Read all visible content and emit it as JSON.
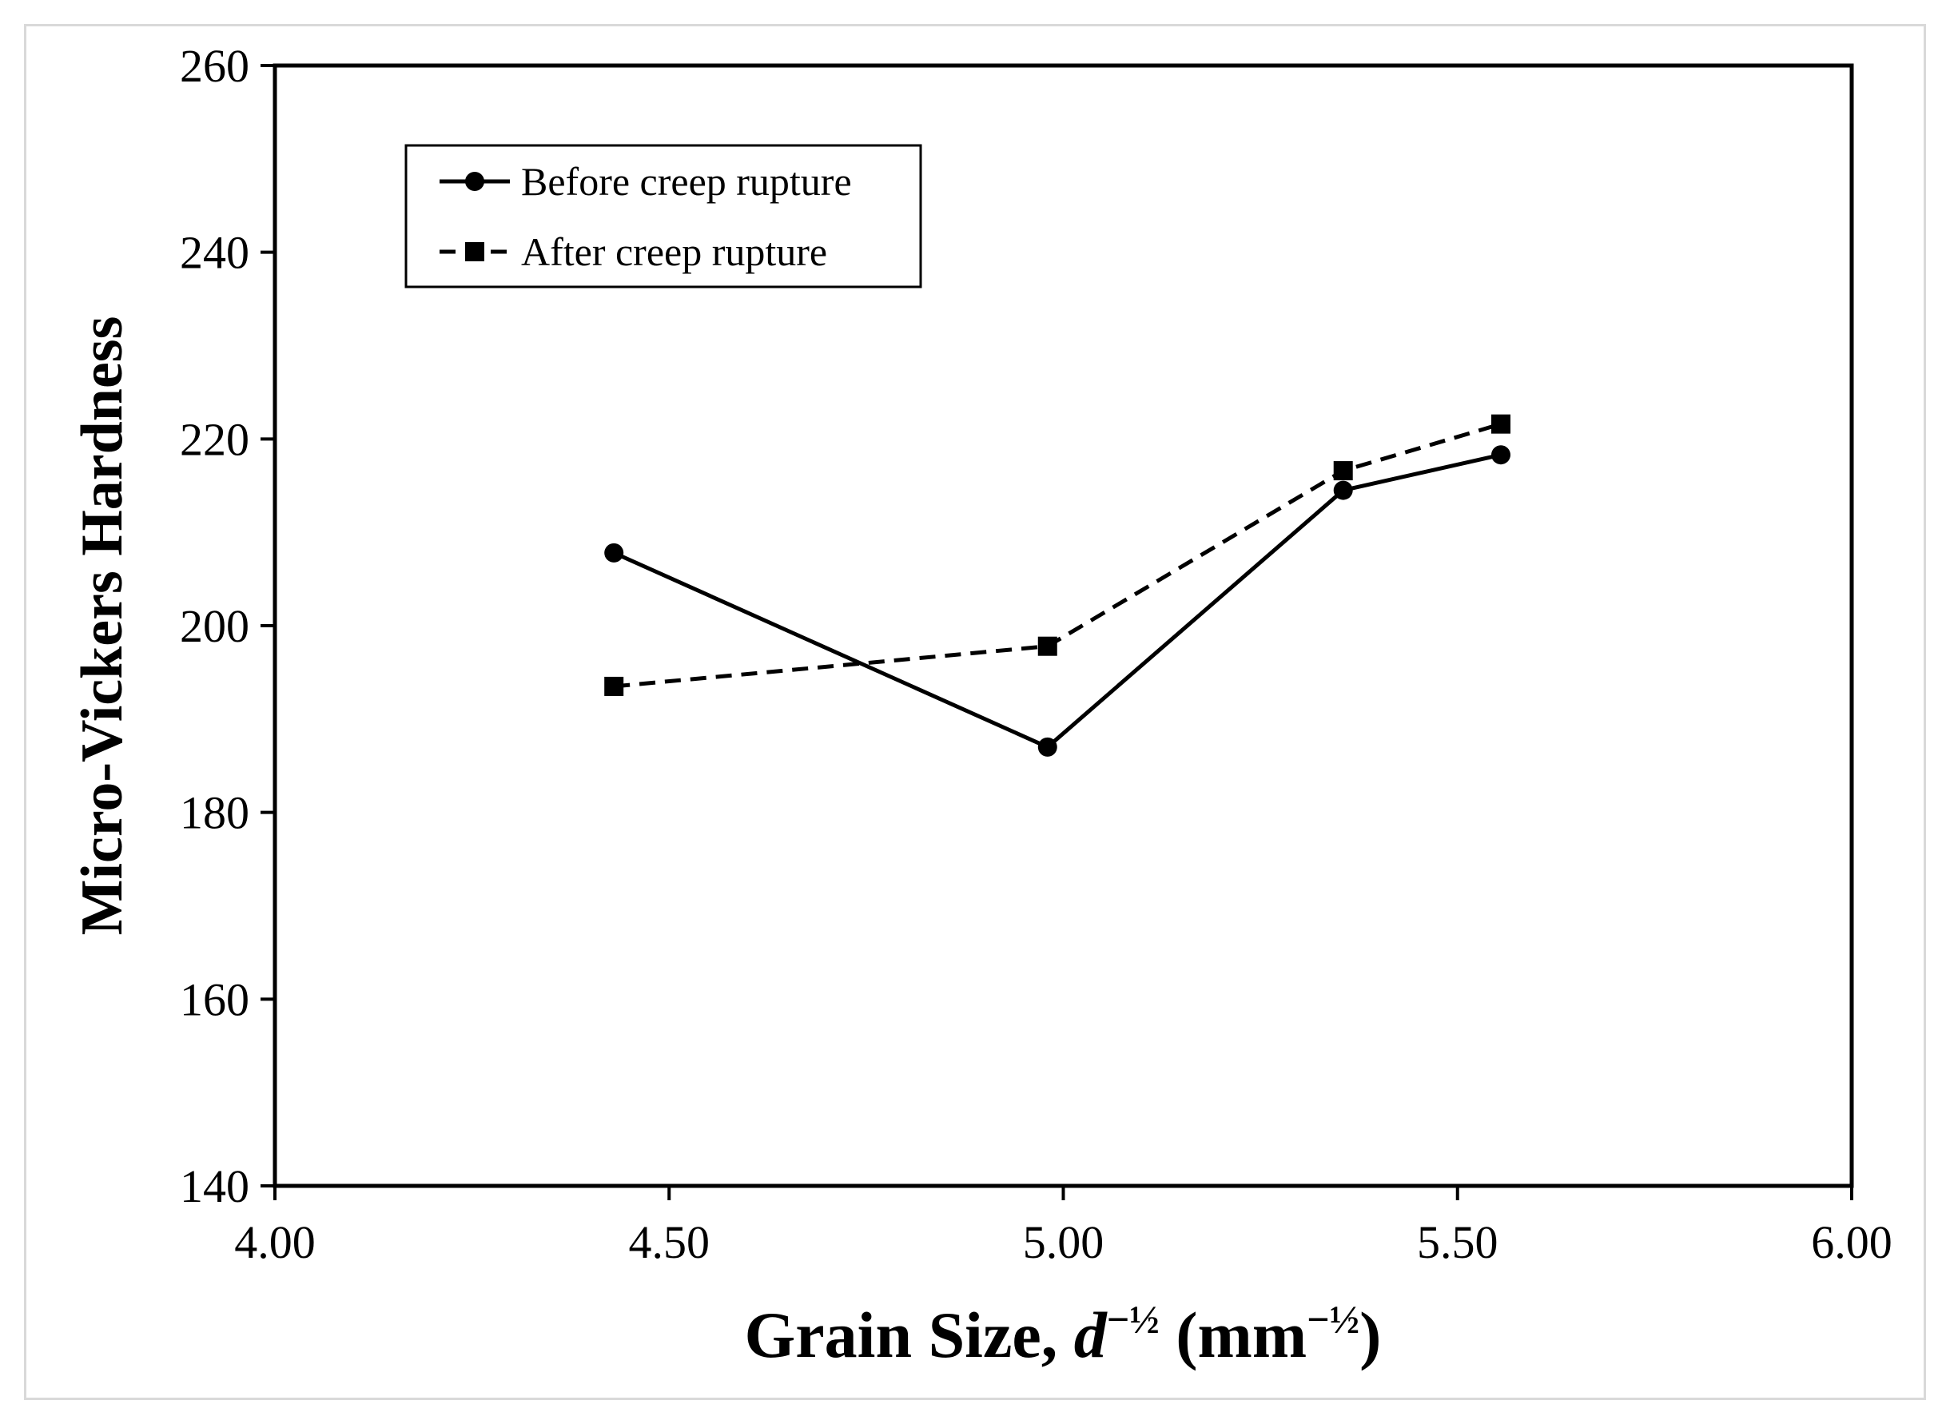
{
  "chart_data": {
    "type": "line",
    "title": "",
    "xlabel": {
      "main": "Grain Size, ",
      "var": "d",
      "exp": "−½",
      "unit_open": " (mm",
      "unit_exp": "−½",
      "unit_close": ")"
    },
    "ylabel": "Micro-Vickers Hardness",
    "xlim": [
      4.0,
      6.0
    ],
    "ylim": [
      140,
      260
    ],
    "xticks": [
      "4.00",
      "4.50",
      "5.00",
      "5.50",
      "6.00"
    ],
    "yticks": [
      "140",
      "160",
      "180",
      "200",
      "220",
      "240",
      "260"
    ],
    "grid": false,
    "legend_position": "top-left",
    "series": [
      {
        "name": "Before creep rupture",
        "style": "solid",
        "marker": "circle",
        "color": "#000000",
        "x": [
          4.43,
          4.98,
          5.355,
          5.555
        ],
        "y": [
          207.8,
          187.0,
          214.5,
          218.3
        ]
      },
      {
        "name": "After creep rupture",
        "style": "dashed",
        "marker": "square",
        "color": "#000000",
        "x": [
          4.43,
          4.98,
          5.355,
          5.555
        ],
        "y": [
          193.5,
          197.8,
          216.6,
          221.6
        ]
      }
    ]
  }
}
